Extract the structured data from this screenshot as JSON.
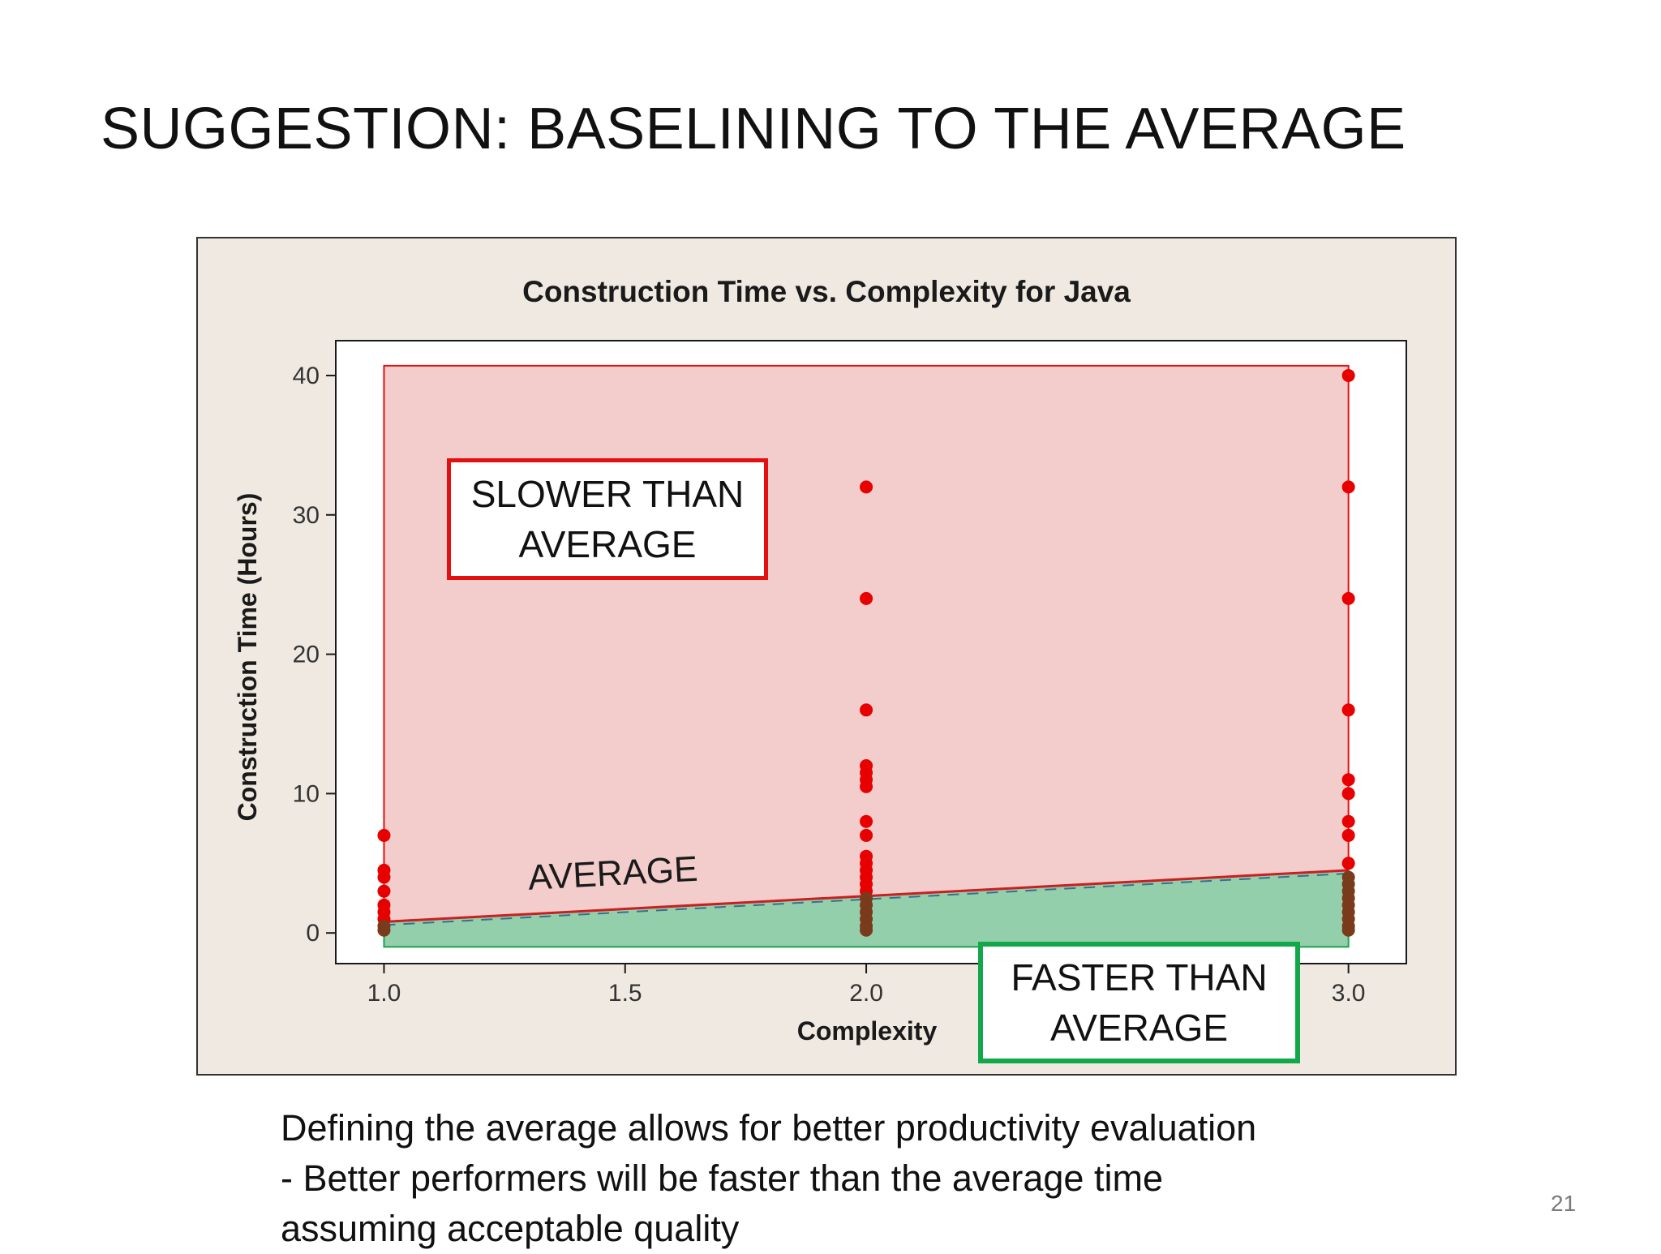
{
  "slide": {
    "title": "SUGGESTION: BASELINING TO THE AVERAGE",
    "caption_lines": [
      "Defining the average allows for better productivity evaluation",
      "- Better performers will be faster than the average time",
      "assuming acceptable quality"
    ],
    "page_number": "21"
  },
  "callouts": {
    "slower_line1": "SLOWER THAN",
    "slower_line2": "AVERAGE",
    "faster_line1": "FASTER THAN",
    "faster_line2": "AVERAGE",
    "average_label": "AVERAGE"
  },
  "chart_data": {
    "type": "scatter",
    "title": "Construction Time vs. Complexity for Java",
    "xlabel": "Complexity",
    "ylabel": "Construction Time (Hours)",
    "xlim": [
      0.9,
      3.12
    ],
    "ylim": [
      -2.2,
      42.5
    ],
    "x_ticks": [
      1.0,
      1.5,
      2.0,
      2.5,
      3.0
    ],
    "x_tick_labels": [
      "1.0",
      "1.5",
      "2.0",
      "2.5",
      "3.0"
    ],
    "y_ticks": [
      0,
      10,
      20,
      30,
      40
    ],
    "y_tick_labels": [
      "0",
      "10",
      "20",
      "30",
      "40"
    ],
    "grid": false,
    "average_line": {
      "x": [
        1.0,
        3.0
      ],
      "y": [
        0.8,
        4.5
      ]
    },
    "slower_region": {
      "x": [
        1.0,
        3.0
      ],
      "top": 40.7
    },
    "faster_region": {
      "x": [
        1.0,
        3.0
      ],
      "bottom": -1.0
    },
    "colors": {
      "above_average_points": "#e80000",
      "below_average_points": "#7a3a1c",
      "slower_fill": "#f3cccc",
      "slower_edge": "#e41010",
      "faster_fill": "#94cfab",
      "faster_edge": "#22a050",
      "average_line": "#c82020",
      "chart_background": "#efe9e1",
      "plot_background": "#ffffff"
    },
    "points_above_average": [
      [
        1.0,
        7.0
      ],
      [
        1.0,
        4.5
      ],
      [
        1.0,
        4.0
      ],
      [
        1.0,
        3.0
      ],
      [
        1.0,
        2.0
      ],
      [
        1.0,
        1.5
      ],
      [
        1.0,
        1.0
      ],
      [
        2.0,
        32.0
      ],
      [
        2.0,
        24.0
      ],
      [
        2.0,
        16.0
      ],
      [
        2.0,
        12.0
      ],
      [
        2.0,
        11.5
      ],
      [
        2.0,
        11.0
      ],
      [
        2.0,
        10.5
      ],
      [
        2.0,
        8.0
      ],
      [
        2.0,
        7.0
      ],
      [
        2.0,
        5.5
      ],
      [
        2.0,
        5.0
      ],
      [
        2.0,
        4.5
      ],
      [
        2.0,
        4.0
      ],
      [
        2.0,
        3.5
      ],
      [
        2.0,
        3.0
      ],
      [
        3.0,
        40.0
      ],
      [
        3.0,
        32.0
      ],
      [
        3.0,
        24.0
      ],
      [
        3.0,
        16.0
      ],
      [
        3.0,
        11.0
      ],
      [
        3.0,
        10.0
      ],
      [
        3.0,
        8.0
      ],
      [
        3.0,
        7.0
      ],
      [
        3.0,
        5.0
      ]
    ],
    "points_below_average": [
      [
        1.0,
        0.5
      ],
      [
        1.0,
        0.2
      ],
      [
        2.0,
        2.5
      ],
      [
        2.0,
        2.0
      ],
      [
        2.0,
        1.5
      ],
      [
        2.0,
        1.0
      ],
      [
        2.0,
        0.5
      ],
      [
        2.0,
        0.2
      ],
      [
        3.0,
        4.0
      ],
      [
        3.0,
        3.5
      ],
      [
        3.0,
        3.0
      ],
      [
        3.0,
        2.5
      ],
      [
        3.0,
        2.0
      ],
      [
        3.0,
        1.5
      ],
      [
        3.0,
        1.0
      ],
      [
        3.0,
        0.5
      ],
      [
        3.0,
        0.2
      ]
    ]
  }
}
